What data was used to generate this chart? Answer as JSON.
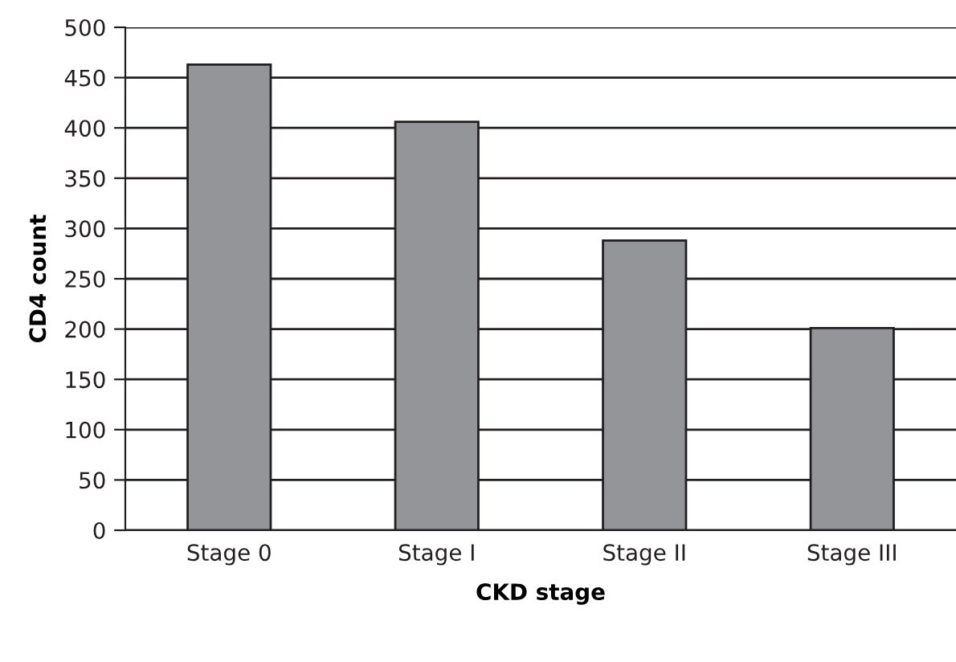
{
  "chart_data": {
    "type": "bar",
    "xlabel": "CKD stage",
    "ylabel": "CD4 count",
    "categories": [
      "Stage 0",
      "Stage I",
      "Stage II",
      "Stage III"
    ],
    "values": [
      463,
      406,
      288,
      201
    ],
    "color": "#939598",
    "ylim": [
      0,
      500
    ],
    "yticks": [
      0,
      50,
      100,
      150,
      200,
      250,
      300,
      350,
      400,
      450,
      500
    ],
    "grid": "y"
  }
}
